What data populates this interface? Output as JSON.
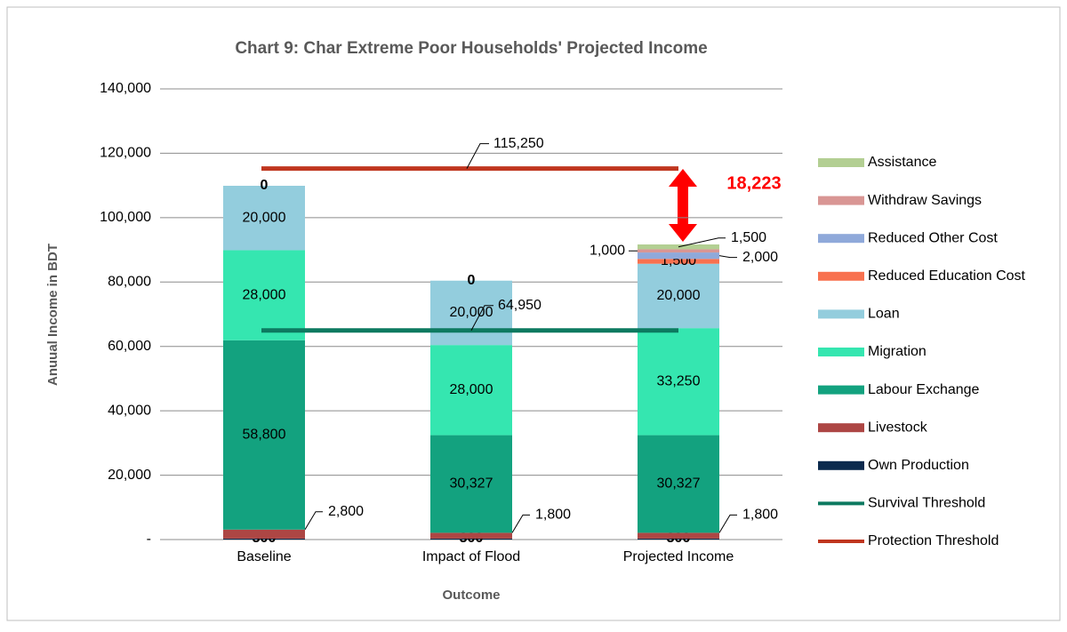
{
  "chart_data": {
    "type": "stacked_bar",
    "title": "Chart 9: Char Extreme Poor Households' Projected Income",
    "x_label": "Outcome",
    "y_label": "Anuual Income in BDT",
    "categories": [
      "Baseline",
      "Impact of Flood",
      "Projected Income"
    ],
    "ylim": [
      0,
      140000
    ],
    "yticks": [
      {
        "value": 0,
        "label": "-"
      },
      {
        "value": 20000,
        "label": "20,000"
      },
      {
        "value": 40000,
        "label": "40,000"
      },
      {
        "value": 60000,
        "label": "60,000"
      },
      {
        "value": 80000,
        "label": "80,000"
      },
      {
        "value": 100000,
        "label": "100,000"
      },
      {
        "value": 120000,
        "label": "120,000"
      },
      {
        "value": 140000,
        "label": "140,000"
      }
    ],
    "grid": true,
    "legend": "right",
    "series": [
      {
        "name": "Own Production",
        "color": "#0c2a4e",
        "values": [
          300,
          300,
          300
        ],
        "value_labels": [
          "300",
          "300",
          "300"
        ]
      },
      {
        "name": "Livestock",
        "color": "#ad4644",
        "values": [
          2800,
          1800,
          1800
        ],
        "value_labels": [
          "2,800",
          "1,800",
          "1,800"
        ]
      },
      {
        "name": "Labour Exchange",
        "color": "#13a27f",
        "values": [
          58800,
          30327,
          30327
        ],
        "value_labels": [
          "58,800",
          "30,327",
          "30,327"
        ]
      },
      {
        "name": "Migration",
        "color": "#35e6b0",
        "values": [
          28000,
          28000,
          33250
        ],
        "value_labels": [
          "28,000",
          "28,000",
          "33,250"
        ]
      },
      {
        "name": "Loan",
        "color": "#93cddd",
        "values": [
          20000,
          20000,
          20000
        ],
        "value_labels": [
          "20,000",
          "20,000",
          "20,000"
        ]
      },
      {
        "name": "Reduced Education Cost",
        "color": "#f8714f",
        "values": [
          null,
          null,
          1500
        ],
        "value_labels": [
          null,
          null,
          "1,500"
        ]
      },
      {
        "name": "Reduced Other Cost",
        "color": "#8fa9da",
        "values": [
          null,
          null,
          2000
        ],
        "value_labels": [
          null,
          null,
          "2,000"
        ]
      },
      {
        "name": "Withdraw Savings",
        "color": "#d99694",
        "values": [
          null,
          null,
          1000
        ],
        "value_labels": [
          null,
          null,
          "1,000"
        ]
      },
      {
        "name": "Assistance",
        "color": "#b3cf93",
        "values": [
          0,
          0,
          1500
        ],
        "value_labels": [
          "0",
          "0",
          "1,500"
        ]
      }
    ],
    "lines": [
      {
        "name": "Survival Threshold",
        "color": "#0d7a60",
        "value": 64950,
        "value_label": "64,950"
      },
      {
        "name": "Protection Threshold",
        "color": "#c0361f",
        "value": 115250,
        "value_label": "115,250"
      }
    ],
    "annotation": "18,223"
  }
}
